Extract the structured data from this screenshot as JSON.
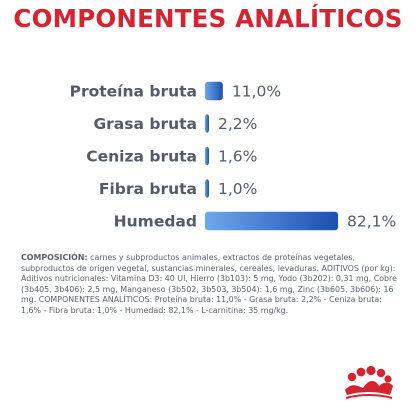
{
  "title": "COMPONENTES ANALÍTICOS",
  "colors": {
    "title": "#d7222f",
    "bar_light": "#6ea8e8",
    "bar_dark": "#1a4fb0",
    "text": "#555b66",
    "logo": "#d7222f"
  },
  "chart_data": {
    "type": "bar",
    "orientation": "horizontal",
    "categories": [
      "Proteína bruta",
      "Grasa bruta",
      "Ceniza bruta",
      "Fibra bruta",
      "Humedad"
    ],
    "values": [
      11.0,
      2.2,
      1.6,
      1.0,
      82.1
    ],
    "value_labels": [
      "11,0%",
      "2,2%",
      "1,6%",
      "1,0%",
      "82,1%"
    ],
    "title": "COMPONENTES ANALÍTICOS",
    "xlabel": "",
    "ylabel": "",
    "xlim": [
      0,
      82.1
    ],
    "grid": false,
    "legend": "none"
  },
  "composition": {
    "lead": "COMPOSICIÓN:",
    "text": " carnes y subproductos animales, extractos de proteínas vegetales, subproductos de origen vegetal, sustancias minerales, cereales, levaduras. ADITIVOS (por kg): Aditivos nutricionales: Vitamina D3: 40 UI, Hierro (3b103): 5 mg, Yodo (3b202): 0,31 mg, Cobre (3b405, 3b406): 2,5 mg, Manganeso (3b502, 3b503, 3b504): 1,6 mg, Zinc (3b605, 3b606): 16 mg. COMPONENTES ANALÍTICOS: Proteína bruta: 11,0% - Grasa bruta: 2,2% - Ceniza bruta: 1,6% - Fibra bruta: 1,0% - Humedad: 82,1% - L-carnitina: 35 mg/kg."
  },
  "logo": {
    "icon": "royal-canin-crown-icon"
  }
}
